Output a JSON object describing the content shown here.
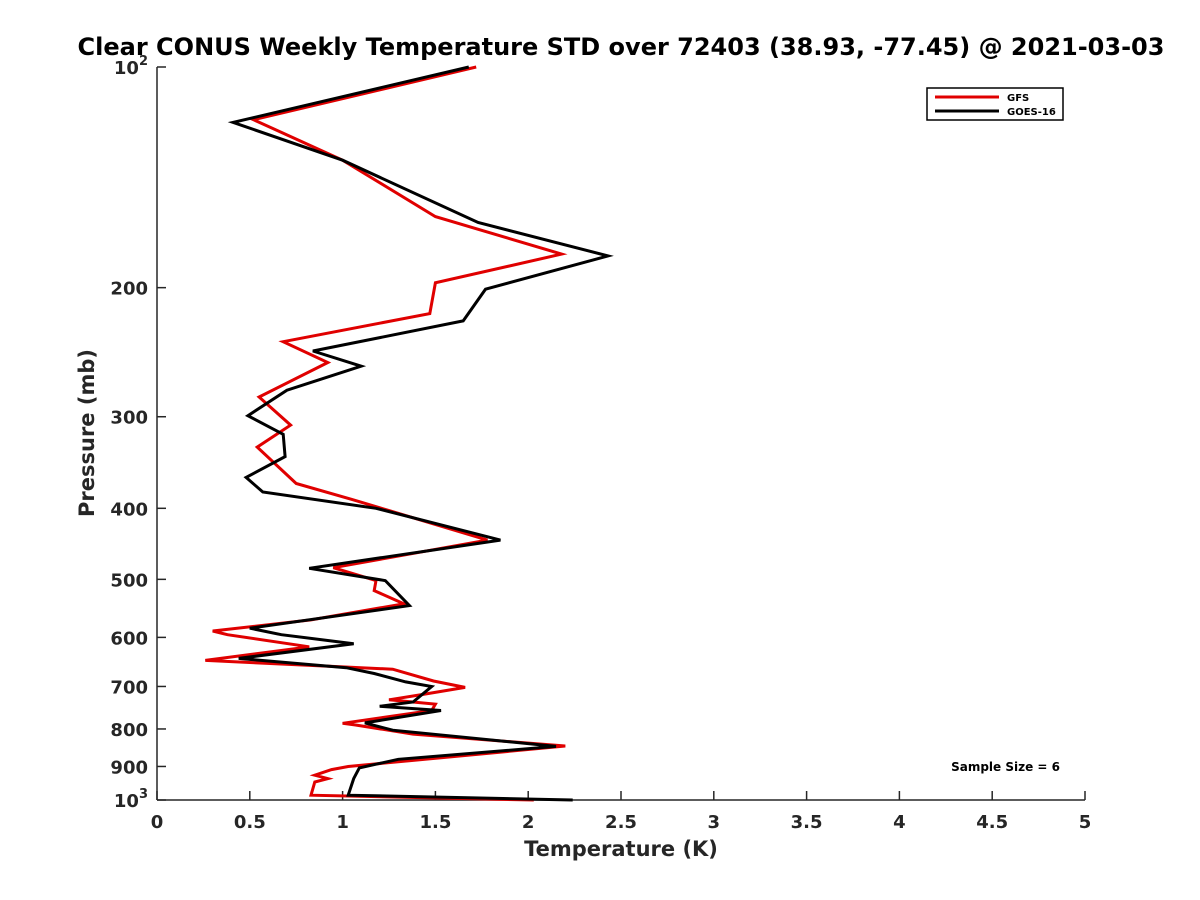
{
  "chart_data": {
    "type": "line",
    "title": "Clear CONUS Weekly Temperature STD over 72403 (38.93, -77.45) @ 2021-03-03",
    "xlabel": "Temperature (K)",
    "ylabel": "Pressure (mb)",
    "xlim": [
      0,
      5
    ],
    "ylim": [
      100,
      1000
    ],
    "y_scale": "log",
    "y_reversed": true,
    "x_ticks": [
      0,
      0.5,
      1,
      1.5,
      2,
      2.5,
      3,
      3.5,
      4,
      4.5,
      5
    ],
    "x_tick_labels": [
      "0",
      "0.5",
      "1",
      "1.5",
      "2",
      "2.5",
      "3",
      "3.5",
      "4",
      "4.5",
      "5"
    ],
    "y_ticks": [
      100,
      200,
      300,
      400,
      500,
      600,
      700,
      800,
      900,
      1000
    ],
    "y_tick_labels": [
      {
        "base": "10",
        "exp": "2"
      },
      {
        "base": "200",
        "exp": ""
      },
      {
        "base": "300",
        "exp": ""
      },
      {
        "base": "400",
        "exp": ""
      },
      {
        "base": "500",
        "exp": ""
      },
      {
        "base": "600",
        "exp": ""
      },
      {
        "base": "700",
        "exp": ""
      },
      {
        "base": "800",
        "exp": ""
      },
      {
        "base": "900",
        "exp": ""
      },
      {
        "base": "10",
        "exp": "3"
      }
    ],
    "grid": false,
    "legend_position": "top-right",
    "annotation": "Sample Size = 6",
    "series": [
      {
        "name": "GFS",
        "color": "#e00000",
        "points": [
          [
            1.72,
            100
          ],
          [
            0.52,
            118
          ],
          [
            1.0,
            134
          ],
          [
            1.5,
            160
          ],
          [
            2.18,
            180
          ],
          [
            1.5,
            197
          ],
          [
            1.47,
            217
          ],
          [
            0.68,
            237
          ],
          [
            0.92,
            253
          ],
          [
            0.55,
            282
          ],
          [
            0.72,
            308
          ],
          [
            0.54,
            330
          ],
          [
            0.75,
            370
          ],
          [
            1.05,
            389
          ],
          [
            1.78,
            442
          ],
          [
            0.95,
            482
          ],
          [
            1.18,
            502
          ],
          [
            1.17,
            518
          ],
          [
            1.33,
            540
          ],
          [
            0.83,
            568
          ],
          [
            0.3,
            588
          ],
          [
            0.38,
            595
          ],
          [
            0.82,
            618
          ],
          [
            0.26,
            645
          ],
          [
            1.27,
            663
          ],
          [
            1.49,
            688
          ],
          [
            1.66,
            702
          ],
          [
            1.43,
            718
          ],
          [
            1.25,
            730
          ],
          [
            1.5,
            740
          ],
          [
            1.48,
            755
          ],
          [
            1.0,
            786
          ],
          [
            1.07,
            790
          ],
          [
            1.38,
            813
          ],
          [
            2.2,
            844
          ],
          [
            1.03,
            900
          ],
          [
            0.94,
            909
          ],
          [
            0.85,
            925
          ],
          [
            0.92,
            935
          ],
          [
            0.85,
            945
          ],
          [
            0.83,
            985
          ],
          [
            2.03,
            1000
          ]
        ]
      },
      {
        "name": "GOES-16",
        "color": "#000000",
        "points": [
          [
            1.68,
            100
          ],
          [
            0.41,
            119
          ],
          [
            1.0,
            134
          ],
          [
            1.73,
            163
          ],
          [
            2.43,
            181
          ],
          [
            1.77,
            201
          ],
          [
            1.65,
            222
          ],
          [
            0.84,
            244
          ],
          [
            1.1,
            256
          ],
          [
            0.7,
            276
          ],
          [
            0.49,
            299
          ],
          [
            0.68,
            317
          ],
          [
            0.69,
            340
          ],
          [
            0.48,
            363
          ],
          [
            0.57,
            380
          ],
          [
            1.18,
            400
          ],
          [
            1.85,
            442
          ],
          [
            0.82,
            483
          ],
          [
            1.23,
            502
          ],
          [
            1.36,
            543
          ],
          [
            0.5,
            583
          ],
          [
            0.67,
            595
          ],
          [
            1.06,
            612
          ],
          [
            0.44,
            641
          ],
          [
            1.02,
            660
          ],
          [
            1.17,
            672
          ],
          [
            1.34,
            690
          ],
          [
            1.48,
            700
          ],
          [
            1.38,
            735
          ],
          [
            1.2,
            745
          ],
          [
            1.53,
            755
          ],
          [
            1.12,
            785
          ],
          [
            1.27,
            803
          ],
          [
            2.15,
            845
          ],
          [
            1.3,
            880
          ],
          [
            1.09,
            904
          ],
          [
            1.06,
            935
          ],
          [
            1.03,
            985
          ],
          [
            2.24,
            1000
          ]
        ]
      }
    ]
  }
}
